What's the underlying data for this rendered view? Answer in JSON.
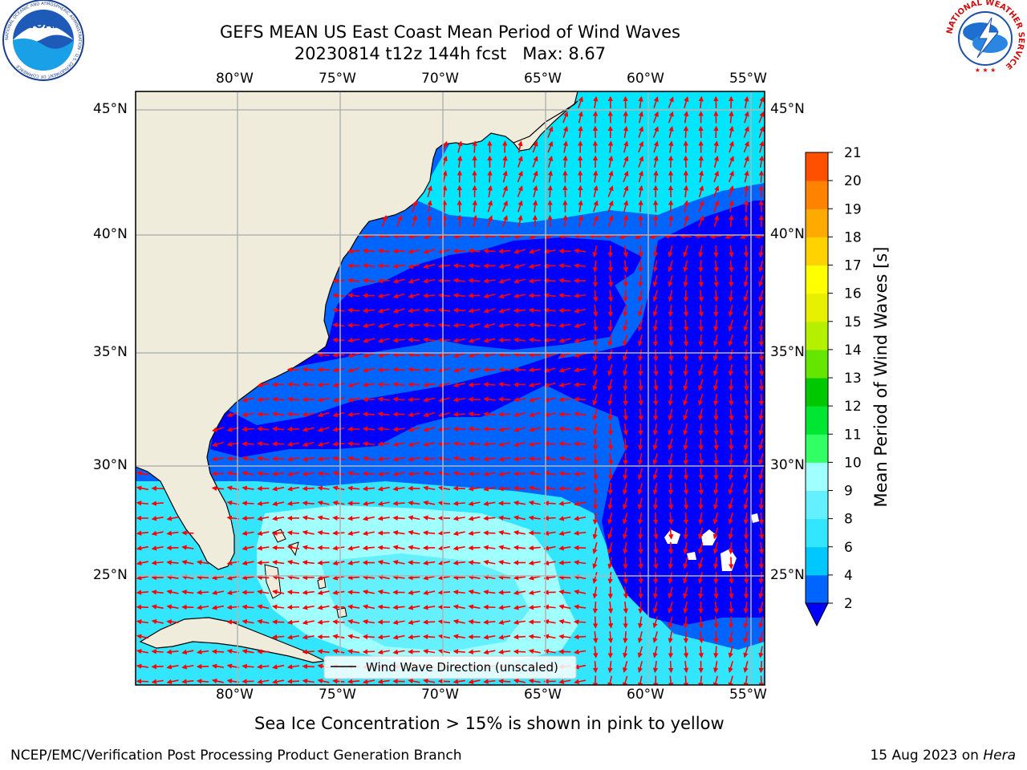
{
  "title": {
    "line1": "GEFS MEAN US East Coast Mean Period of Wind Waves",
    "line2": "20230814 t12z 144h fcst   Max: 8.67"
  },
  "map": {
    "lon_ticks": [
      "80°W",
      "75°W",
      "70°W",
      "65°W",
      "60°W",
      "55°W"
    ],
    "lat_ticks": [
      "45°N",
      "40°N",
      "35°N",
      "30°N",
      "25°N"
    ],
    "legend_label": "Wind Wave Direction (unscaled)",
    "land_color": "#efecdc",
    "arrow_color": "#ff0000"
  },
  "colorbar": {
    "label": "Mean Period of Wind Waves [s]",
    "tick_labels": [
      "2",
      "4",
      "6",
      "8",
      "9",
      "10",
      "11",
      "12",
      "13",
      "14",
      "15",
      "16",
      "17",
      "18",
      "19",
      "20",
      "21"
    ],
    "colors": [
      "#0064ff",
      "#00c8ff",
      "#32e6ff",
      "#64f0ff",
      "#a0ffff",
      "#32ff64",
      "#00e632",
      "#00c800",
      "#64e600",
      "#b4f000",
      "#e6f000",
      "#ffff00",
      "#ffd200",
      "#ffaa00",
      "#ff8200",
      "#ff5000",
      "#ff2800",
      "#ff0000"
    ],
    "extend_color": "#0000ff"
  },
  "caption": "Sea Ice Concentration > 15% is shown in pink to yellow",
  "footer": {
    "left": "NCEP/EMC/Verification Post Processing Product Generation Branch",
    "date": "15 Aug 2023 on ",
    "machine": "Hera"
  },
  "logos": {
    "noaa_text": "NOAA",
    "noaa_ring": "NATIONAL OCEANIC AND ATMOSPHERIC ADMINISTRATION · U.S. DEPARTMENT OF COMMERCE",
    "nws_ring": "NATIONAL WEATHER SERVICE"
  }
}
